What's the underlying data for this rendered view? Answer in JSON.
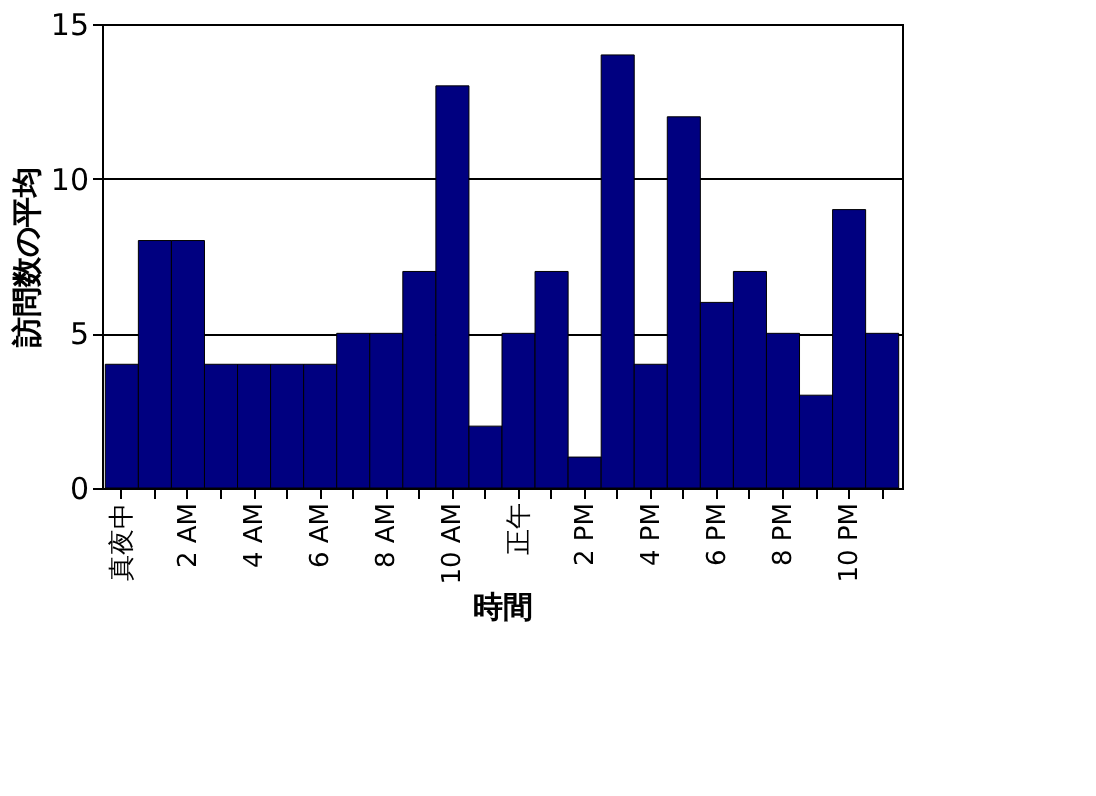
{
  "chart_data": {
    "type": "bar",
    "xlabel": "時間",
    "ylabel": "訪問数の平均",
    "categories": [
      "真夜中",
      null,
      "2 AM",
      null,
      "4 AM",
      null,
      "6 AM",
      null,
      "8 AM",
      null,
      "10 AM",
      null,
      "正午",
      null,
      "2 PM",
      null,
      "4 PM",
      null,
      "6 PM",
      null,
      "8 PM",
      null,
      "10 PM",
      null
    ],
    "values": [
      4,
      8,
      8,
      4,
      4,
      4,
      4,
      5,
      5,
      7,
      13,
      2,
      5,
      7,
      1,
      14,
      4,
      12,
      6,
      7,
      5,
      3,
      9,
      5
    ],
    "color": "#000080",
    "ylim": [
      0,
      15
    ],
    "yticks": [
      0,
      5,
      10,
      15
    ],
    "grid": "y"
  }
}
